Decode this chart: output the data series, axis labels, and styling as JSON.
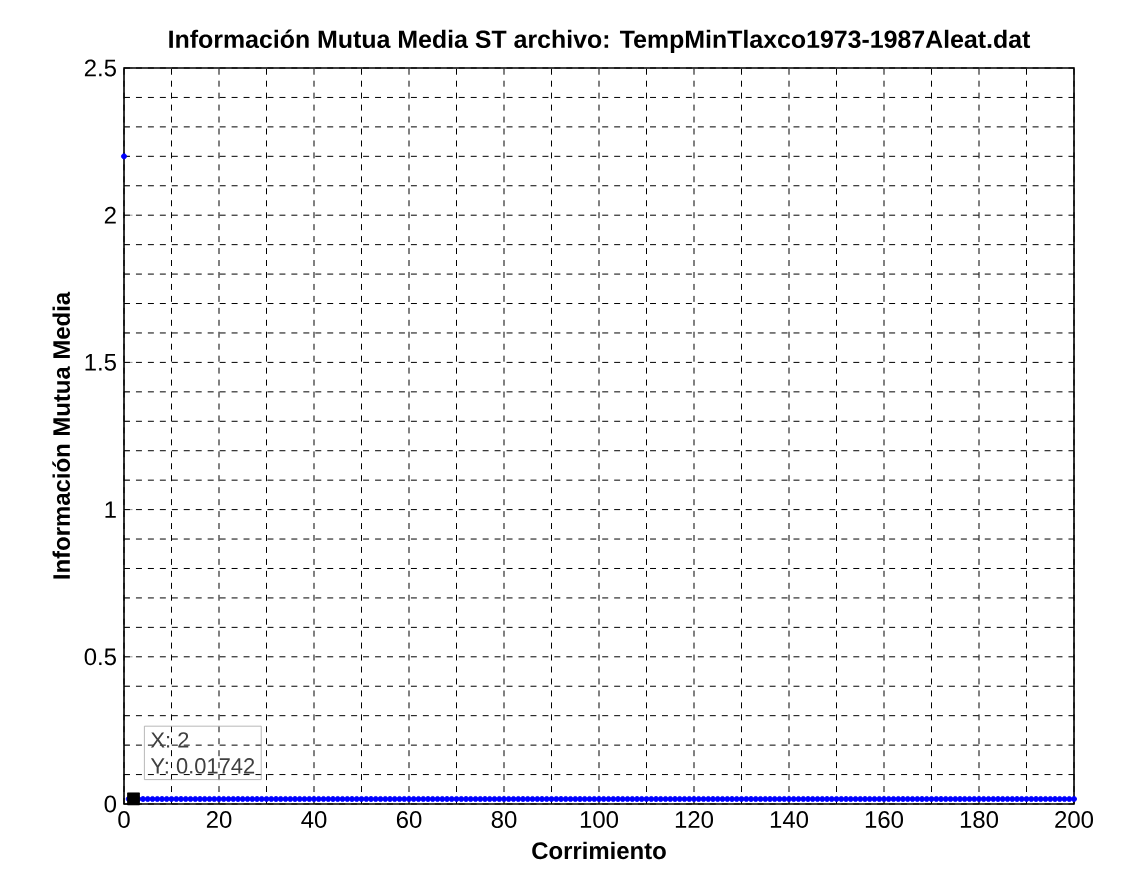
{
  "chart_data": {
    "type": "scatter",
    "title": "Información Mutua Media ST archivo:  TempMinTlaxco1973-1987Aleat.dat",
    "xlabel": "Corrimiento",
    "ylabel": "Información Mutua Media",
    "x": [
      0,
      1,
      2,
      3,
      4,
      5,
      6,
      7,
      8,
      9,
      10,
      11,
      12,
      13,
      14,
      15,
      16,
      17,
      18,
      19,
      20,
      21,
      22,
      23,
      24,
      25,
      26,
      27,
      28,
      29,
      30,
      31,
      32,
      33,
      34,
      35,
      36,
      37,
      38,
      39,
      40,
      41,
      42,
      43,
      44,
      45,
      46,
      47,
      48,
      49,
      50,
      51,
      52,
      53,
      54,
      55,
      56,
      57,
      58,
      59,
      60,
      61,
      62,
      63,
      64,
      65,
      66,
      67,
      68,
      69,
      70,
      71,
      72,
      73,
      74,
      75,
      76,
      77,
      78,
      79,
      80,
      81,
      82,
      83,
      84,
      85,
      86,
      87,
      88,
      89,
      90,
      91,
      92,
      93,
      94,
      95,
      96,
      97,
      98,
      99,
      100,
      101,
      102,
      103,
      104,
      105,
      106,
      107,
      108,
      109,
      110,
      111,
      112,
      113,
      114,
      115,
      116,
      117,
      118,
      119,
      120,
      121,
      122,
      123,
      124,
      125,
      126,
      127,
      128,
      129,
      130,
      131,
      132,
      133,
      134,
      135,
      136,
      137,
      138,
      139,
      140,
      141,
      142,
      143,
      144,
      145,
      146,
      147,
      148,
      149,
      150,
      151,
      152,
      153,
      154,
      155,
      156,
      157,
      158,
      159,
      160,
      161,
      162,
      163,
      164,
      165,
      166,
      167,
      168,
      169,
      170,
      171,
      172,
      173,
      174,
      175,
      176,
      177,
      178,
      179,
      180,
      181,
      182,
      183,
      184,
      185,
      186,
      187,
      188,
      189,
      190,
      191,
      192,
      193,
      194,
      195,
      196,
      197,
      198,
      199,
      200
    ],
    "series": [
      {
        "color": "#0000ff",
        "values": [
          2.2,
          0.017,
          null,
          0.017,
          0.017,
          0.017,
          0.017,
          0.017,
          0.017,
          0.017,
          0.017,
          0.017,
          0.017,
          0.017,
          0.017,
          0.017,
          0.017,
          0.017,
          0.017,
          0.017,
          0.017,
          0.017,
          0.017,
          0.017,
          0.017,
          0.017,
          0.017,
          0.017,
          0.017,
          0.017,
          0.017,
          0.017,
          0.017,
          0.017,
          0.017,
          0.017,
          0.017,
          0.017,
          0.017,
          0.017,
          0.017,
          0.017,
          0.017,
          0.017,
          0.017,
          0.017,
          0.017,
          0.017,
          0.017,
          0.017,
          0.017,
          0.017,
          0.017,
          0.017,
          0.017,
          0.017,
          0.017,
          0.017,
          0.017,
          0.017,
          0.017,
          0.017,
          0.017,
          0.017,
          0.017,
          0.017,
          0.017,
          0.017,
          0.017,
          0.017,
          0.017,
          0.017,
          0.017,
          0.017,
          0.017,
          0.017,
          0.017,
          0.017,
          0.017,
          0.017,
          0.017,
          0.017,
          0.017,
          0.017,
          0.017,
          0.017,
          0.017,
          0.017,
          0.017,
          0.017,
          0.017,
          0.017,
          0.017,
          0.017,
          0.017,
          0.017,
          0.017,
          0.017,
          0.017,
          0.017,
          0.017,
          0.017,
          0.017,
          0.017,
          0.017,
          0.017,
          0.017,
          0.017,
          0.017,
          0.017,
          0.017,
          0.017,
          0.017,
          0.017,
          0.017,
          0.017,
          0.017,
          0.017,
          0.017,
          0.017,
          0.017,
          0.017,
          0.017,
          0.017,
          0.017,
          0.017,
          0.017,
          0.017,
          0.017,
          0.017,
          0.017,
          0.017,
          0.017,
          0.017,
          0.017,
          0.017,
          0.017,
          0.017,
          0.017,
          0.017,
          0.017,
          0.017,
          0.017,
          0.017,
          0.017,
          0.017,
          0.017,
          0.017,
          0.017,
          0.017,
          0.017,
          0.017,
          0.017,
          0.017,
          0.017,
          0.017,
          0.017,
          0.017,
          0.017,
          0.017,
          0.017,
          0.017,
          0.017,
          0.017,
          0.017,
          0.017,
          0.017,
          0.017,
          0.017,
          0.017,
          0.017,
          0.017,
          0.017,
          0.017,
          0.017,
          0.017,
          0.017,
          0.017,
          0.017,
          0.017,
          0.017,
          0.017,
          0.017,
          0.017,
          0.017,
          0.017,
          0.017,
          0.017,
          0.017,
          0.017,
          0.017,
          0.017,
          0.017,
          0.017,
          0.017,
          0.017,
          0.017,
          0.017,
          0.017,
          0.017,
          0.017
        ]
      },
      {
        "color": "#000000",
        "marker": "square",
        "x": [
          2
        ],
        "values": [
          0.01742
        ]
      }
    ],
    "xlim": [
      0,
      200
    ],
    "ylim": [
      0,
      2.5
    ],
    "xticks": [
      0,
      20,
      40,
      60,
      80,
      100,
      120,
      140,
      160,
      180,
      200
    ],
    "yticks": [
      0,
      0.5,
      1,
      1.5,
      2,
      2.5
    ],
    "grid": true,
    "marker": "circle",
    "annotations": [
      "X: 2",
      "Y: 0.01742"
    ]
  }
}
